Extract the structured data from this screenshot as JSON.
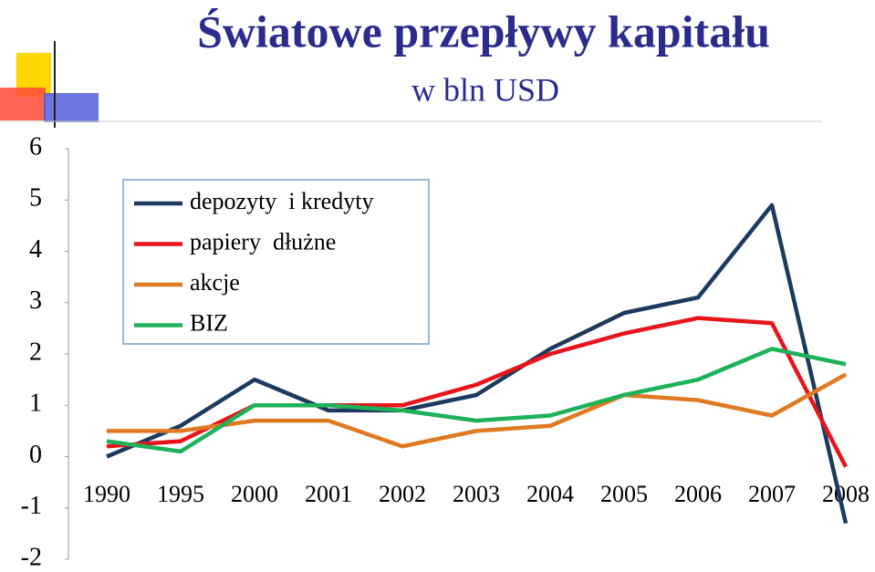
{
  "chart_data": {
    "type": "line",
    "title": "Światowe przepływy kapitału",
    "subtitle": "w bln USD",
    "categories": [
      "1990",
      "1995",
      "2000",
      "2001",
      "2002",
      "2003",
      "2004",
      "2005",
      "2006",
      "2007",
      "2008"
    ],
    "series": [
      {
        "name": "depozyty  i kredyty",
        "color": "#1b3a5e",
        "values": [
          0,
          0.6,
          1.5,
          0.9,
          0.9,
          1.2,
          2.1,
          2.8,
          3.1,
          4.9,
          -1.3
        ]
      },
      {
        "name": "papiery  dłużne",
        "color": "#e8141b",
        "values": [
          0.2,
          0.3,
          1.0,
          1.0,
          1.0,
          1.4,
          2.0,
          2.4,
          2.7,
          2.6,
          -0.2
        ]
      },
      {
        "name": "akcje",
        "color": "#e07a22",
        "values": [
          0.5,
          0.5,
          0.7,
          0.7,
          0.2,
          0.5,
          0.6,
          1.2,
          1.1,
          0.8,
          1.6
        ]
      },
      {
        "name": "BIZ",
        "color": "#1db25a",
        "values": [
          0.3,
          0.1,
          1.0,
          1.0,
          0.9,
          0.7,
          0.8,
          1.2,
          1.5,
          2.1,
          1.8
        ]
      }
    ],
    "ylim": [
      -2,
      6
    ],
    "yticks": [
      -2,
      -1,
      0,
      1,
      2,
      3,
      4,
      5,
      6
    ],
    "grid": false,
    "legend": "upper left"
  }
}
